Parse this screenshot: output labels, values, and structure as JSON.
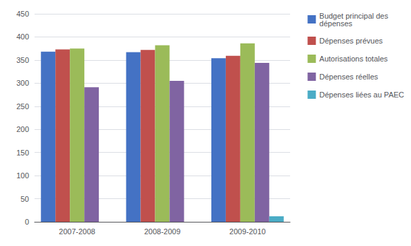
{
  "chart_data": {
    "type": "bar",
    "categories": [
      "2007-2008",
      "2008-2009",
      "2009-2010"
    ],
    "series": [
      {
        "name": "Budget principal des\ndépenses",
        "color": "#4472C4",
        "values": [
          368,
          367,
          354
        ]
      },
      {
        "name": "Dépenses prévues",
        "color": "#C0504D",
        "values": [
          373,
          372,
          359
        ]
      },
      {
        "name": "Autorisations totales",
        "color": "#9BBB59",
        "values": [
          375,
          382,
          386
        ]
      },
      {
        "name": "Dépenses réelles",
        "color": "#8064A2",
        "values": [
          291,
          305,
          344
        ]
      },
      {
        "name": "Dépenses liées au PAEC",
        "color": "#4BACC6",
        "values": [
          0,
          0,
          12
        ]
      }
    ],
    "ylim": [
      0,
      450
    ],
    "yticks": [
      0,
      50,
      100,
      150,
      200,
      250,
      300,
      350,
      400,
      450
    ],
    "grid": true,
    "legend": "upper right"
  }
}
